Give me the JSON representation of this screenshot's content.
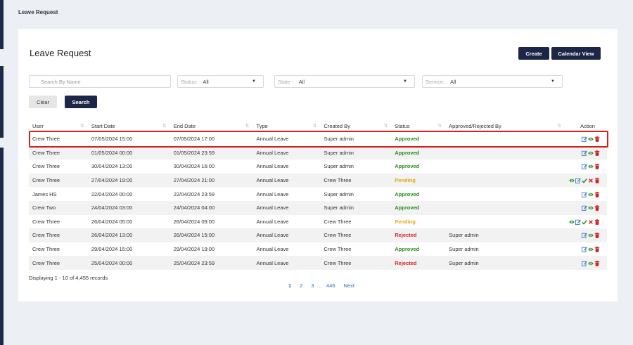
{
  "breadcrumb": "Leave Request",
  "page_title": "Leave Request",
  "buttons": {
    "create": "Create",
    "calendar_view": "Calendar View",
    "clear": "Clear",
    "search": "Search"
  },
  "filters": {
    "search_placeholder": "Search By Name",
    "status": {
      "label": "Status:",
      "value": "All"
    },
    "state": {
      "label": "State :",
      "value": "All"
    },
    "service": {
      "label": "Service:",
      "value": "All"
    }
  },
  "table": {
    "headers": [
      "User",
      "Start Date",
      "End Date",
      "Type",
      "Created By",
      "Status",
      "Approved/Rejected By",
      "Action"
    ],
    "rows": [
      {
        "user": "Crew Three",
        "start": "07/05/2024 15:00",
        "end": "07/05/2024 17:00",
        "type": "Annual Leave",
        "created_by": "Super admin",
        "status": "Approved",
        "approved_by": "",
        "actions": [
          "edit",
          "view",
          "delete"
        ]
      },
      {
        "user": "Crew Three",
        "start": "01/05/2024 00:00",
        "end": "01/05/2024 23:59",
        "type": "Annual Leave",
        "created_by": "Super admin",
        "status": "Approved",
        "approved_by": "",
        "actions": [
          "edit",
          "view",
          "delete"
        ]
      },
      {
        "user": "Crew Three",
        "start": "30/04/2024 13:00",
        "end": "30/04/2024 16:00",
        "type": "Annual Leave",
        "created_by": "Super admin",
        "status": "Approved",
        "approved_by": "",
        "actions": [
          "edit",
          "view",
          "delete"
        ]
      },
      {
        "user": "Crew Three",
        "start": "27/04/2024 19:00",
        "end": "27/04/2024 21:00",
        "type": "Annual Leave",
        "created_by": "Crew Three",
        "status": "Pending",
        "approved_by": "",
        "actions": [
          "view",
          "edit",
          "approve",
          "reject",
          "delete"
        ]
      },
      {
        "user": "James HS",
        "start": "22/04/2024 00:00",
        "end": "22/04/2024 23:59",
        "type": "Annual Leave",
        "created_by": "Super admin",
        "status": "Approved",
        "approved_by": "",
        "actions": [
          "edit",
          "view",
          "delete"
        ]
      },
      {
        "user": "Crew Two",
        "start": "24/04/2024 03:00",
        "end": "24/04/2024 04:00",
        "type": "Annual Leave",
        "created_by": "Super admin",
        "status": "Approved",
        "approved_by": "",
        "actions": [
          "edit",
          "view",
          "delete"
        ]
      },
      {
        "user": "Crew Three",
        "start": "26/04/2024 05:00",
        "end": "26/04/2024 09:00",
        "type": "Annual Leave",
        "created_by": "Crew Three",
        "status": "Pending",
        "approved_by": "",
        "actions": [
          "view",
          "edit",
          "approve",
          "reject",
          "delete"
        ]
      },
      {
        "user": "Crew Three",
        "start": "26/04/2024 13:00",
        "end": "26/04/2024 15:00",
        "type": "Annual Leave",
        "created_by": "Crew Three",
        "status": "Rejected",
        "approved_by": "Super admin",
        "actions": [
          "edit",
          "view",
          "delete"
        ]
      },
      {
        "user": "Crew Three",
        "start": "29/04/2024 15:00",
        "end": "29/04/2024 19:00",
        "type": "Annual Leave",
        "created_by": "Crew Three",
        "status": "Approved",
        "approved_by": "Super admin",
        "actions": [
          "edit",
          "view",
          "delete"
        ]
      },
      {
        "user": "Crew Three",
        "start": "25/04/2024 00:00",
        "end": "25/04/2024 23:59",
        "type": "Annual Leave",
        "created_by": "Crew Three",
        "status": "Rejected",
        "approved_by": "Super admin",
        "actions": [
          "edit",
          "view",
          "delete"
        ]
      }
    ]
  },
  "records_text": "Displaying 1 - 10 of 4,455 records",
  "pagination": {
    "pages": [
      "1",
      "2",
      "3"
    ],
    "ellipsis": "…",
    "last": "446",
    "next": "Next"
  },
  "colors": {
    "primary": "#1c2747",
    "approved": "#2a8a1c",
    "pending": "#e6a714",
    "rejected": "#d02323",
    "edit_icon": "#2a6ebb",
    "view_icon": "#2a8a1c",
    "delete_icon": "#d02323"
  }
}
